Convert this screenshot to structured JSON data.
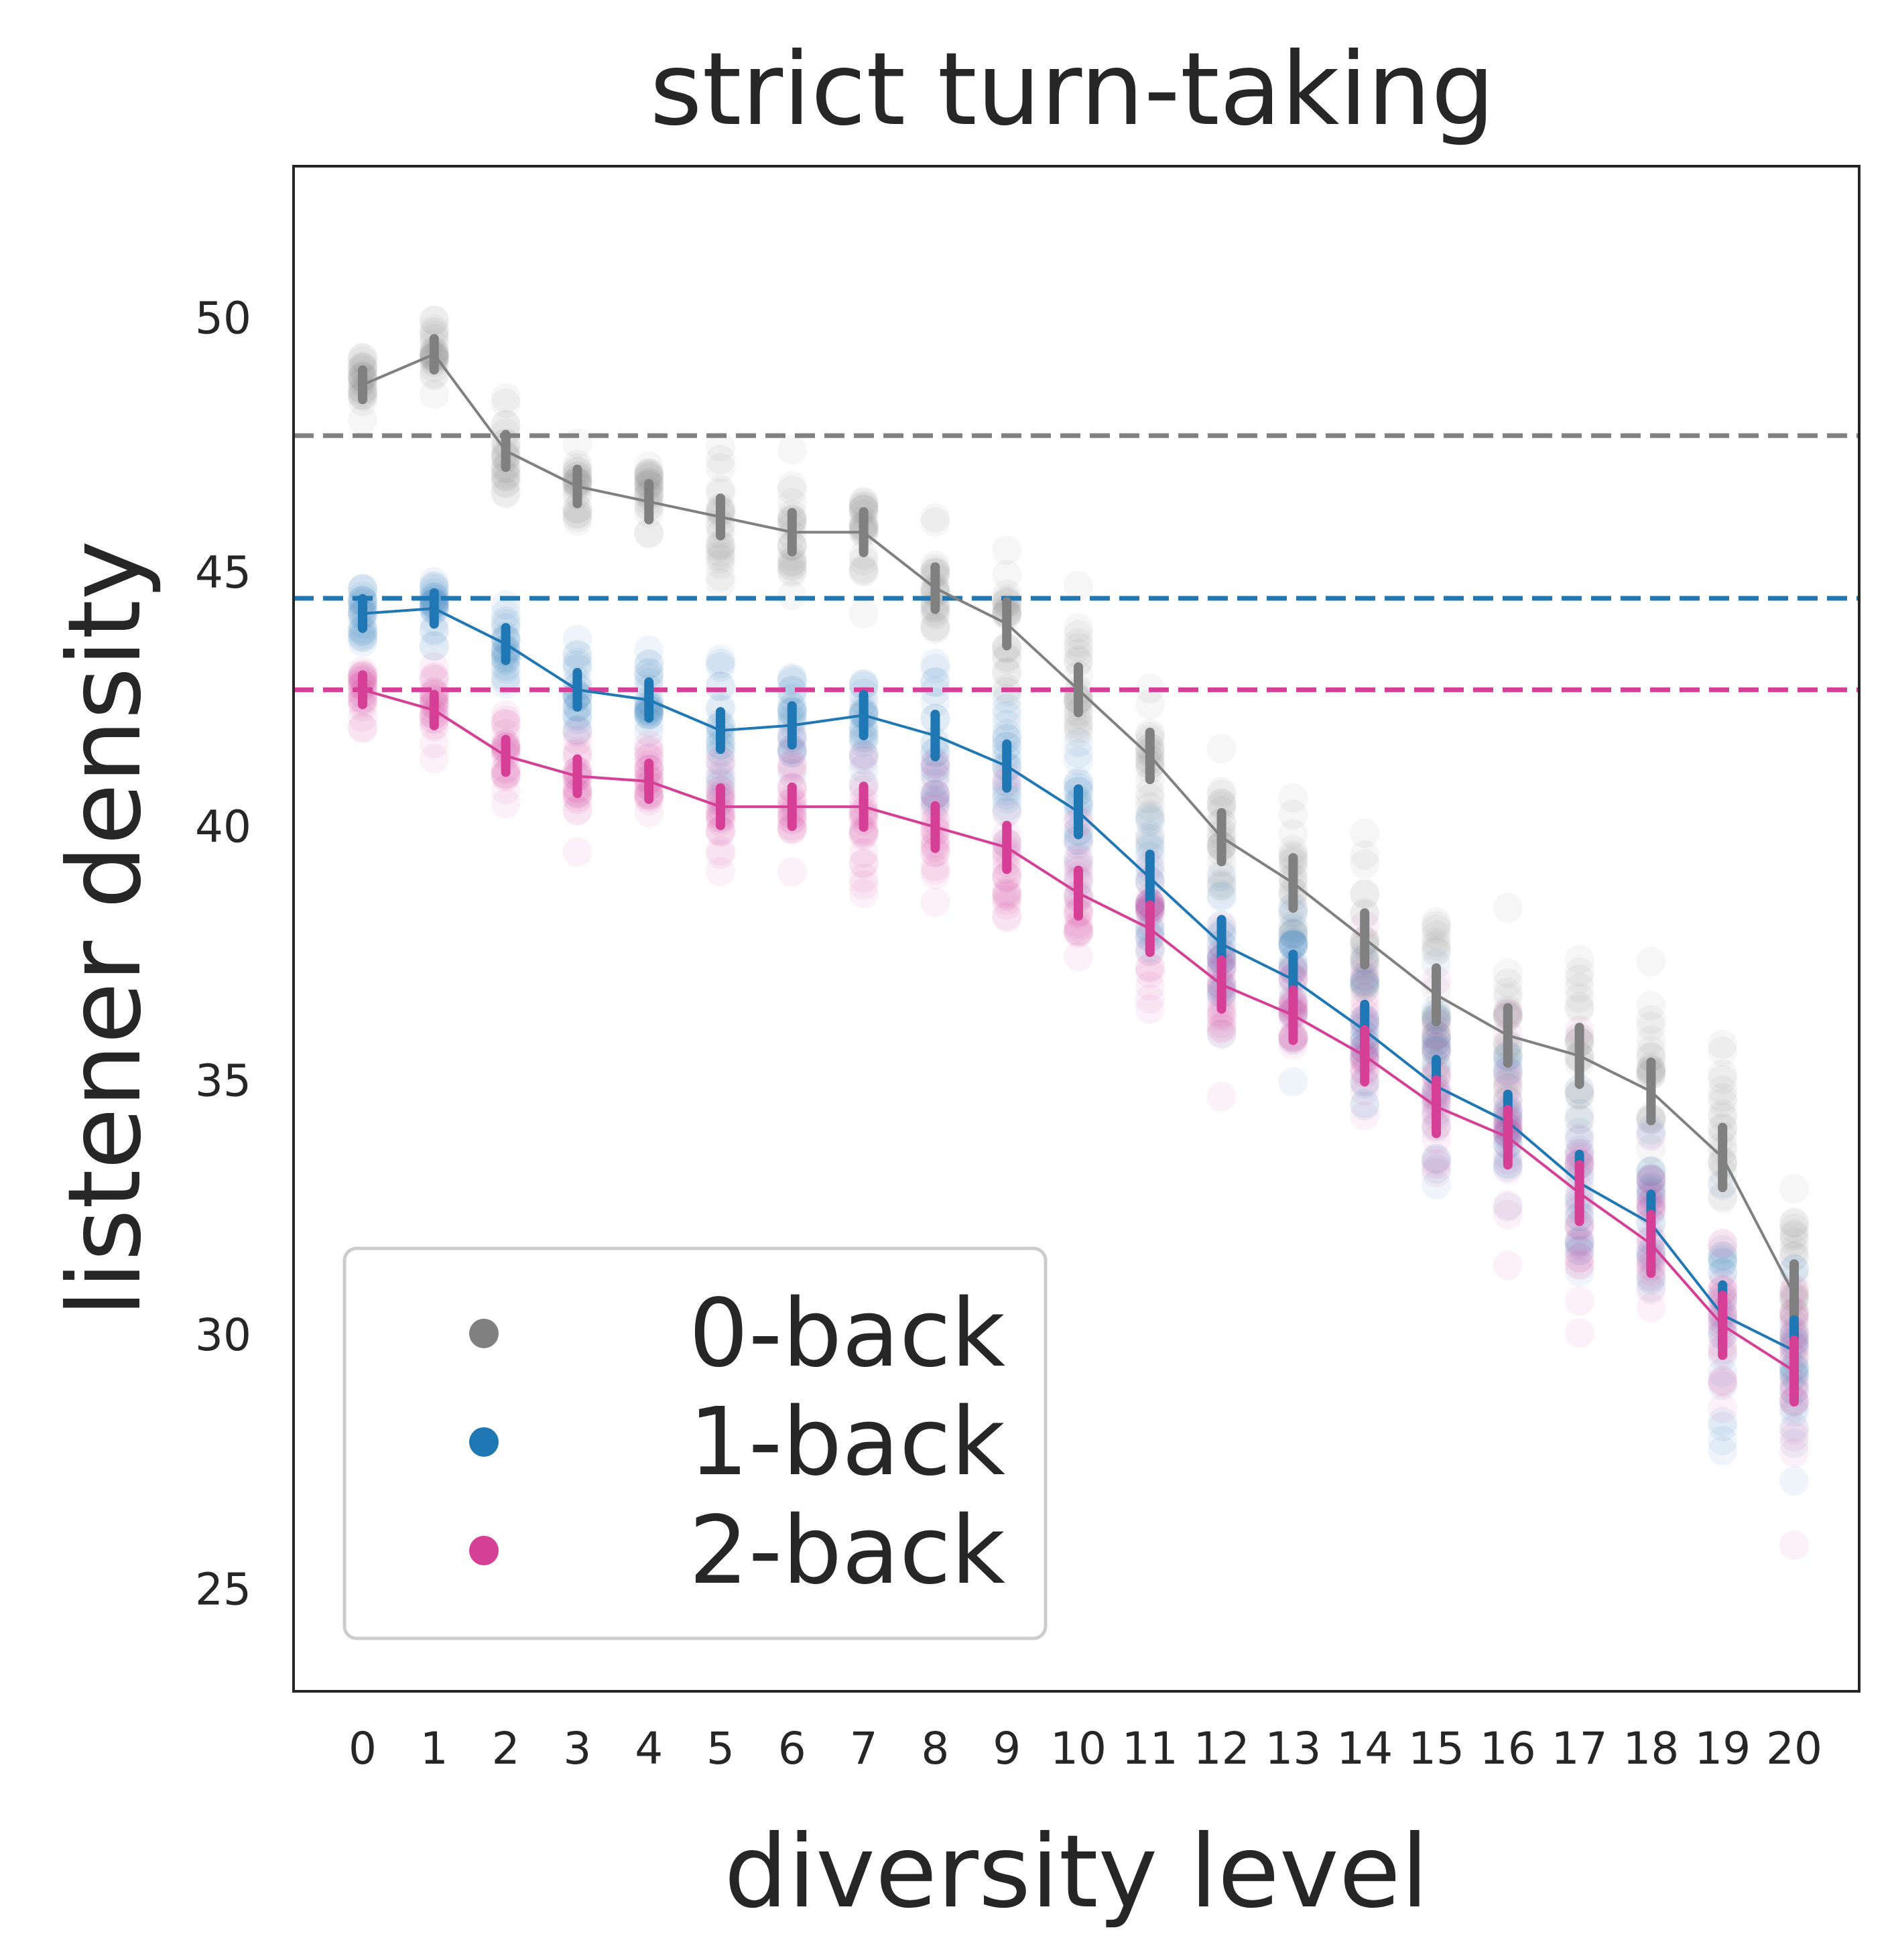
{
  "chart_data": {
    "type": "line",
    "title": "strict turn-taking",
    "xlabel": "diversity level",
    "ylabel": "listener density",
    "categories": [
      "0",
      "1",
      "2",
      "3",
      "4",
      "5",
      "6",
      "7",
      "8",
      "9",
      "10",
      "11",
      "12",
      "13",
      "14",
      "15",
      "16",
      "17",
      "18",
      "19",
      "20"
    ],
    "ylim": [
      23,
      53
    ],
    "yticks": [
      25,
      30,
      35,
      40,
      45,
      50
    ],
    "grid": false,
    "legend_position": "lower-left",
    "series": [
      {
        "name": "0-back",
        "color": "#808080",
        "values": [
          48.7,
          49.3,
          47.4,
          46.7,
          46.4,
          46.1,
          45.8,
          45.8,
          44.7,
          44.0,
          42.7,
          41.4,
          39.8,
          38.9,
          37.8,
          36.7,
          35.9,
          35.5,
          34.8,
          33.5,
          30.8
        ],
        "baseline": 47.7
      },
      {
        "name": "1-back",
        "color": "#1f77b4",
        "values": [
          44.2,
          44.3,
          43.6,
          42.7,
          42.5,
          41.9,
          42.0,
          42.2,
          41.8,
          41.2,
          40.3,
          39.0,
          37.7,
          37.0,
          36.0,
          34.9,
          34.2,
          33.0,
          32.2,
          30.4,
          29.7
        ],
        "baseline": 44.5
      },
      {
        "name": "2-back",
        "color": "#d63f96",
        "values": [
          42.7,
          42.3,
          41.4,
          41.0,
          40.9,
          40.4,
          40.4,
          40.4,
          40.0,
          39.6,
          38.7,
          38.0,
          36.9,
          36.3,
          35.5,
          34.5,
          33.9,
          32.8,
          31.8,
          30.2,
          29.3
        ],
        "baseline": 42.7
      }
    ]
  }
}
